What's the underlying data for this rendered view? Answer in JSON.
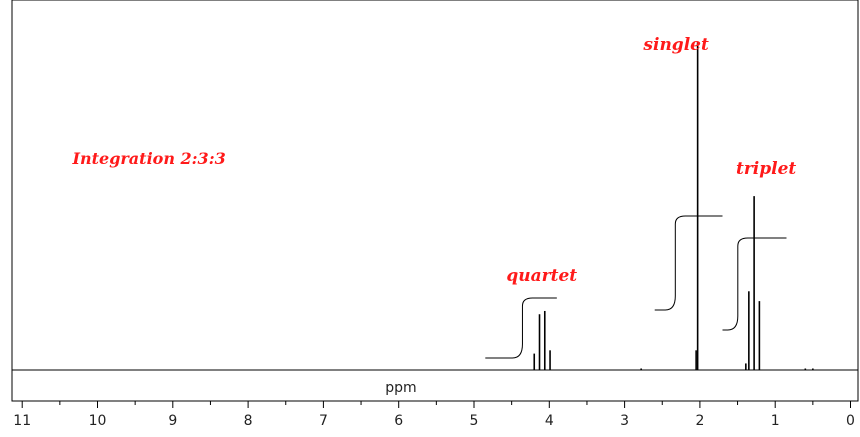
{
  "chart_data": {
    "type": "line",
    "xlabel": "ppm",
    "xlim": [
      11,
      0
    ],
    "x_reversed": true,
    "x_ticks": [
      11,
      10,
      9,
      8,
      7,
      6,
      5,
      4,
      3,
      2,
      1,
      0
    ],
    "annotations": [
      {
        "text": "Integration  2:3:3",
        "x": 10.0
      },
      {
        "text": "quartet",
        "x": 4.1
      },
      {
        "text": "singlet",
        "x": 2.05
      },
      {
        "text": "triplet",
        "x": 1.28
      }
    ],
    "peaks": [
      {
        "group": "quartet",
        "x": 4.2,
        "height": 0.05
      },
      {
        "group": "quartet",
        "x": 4.13,
        "height": 0.17
      },
      {
        "group": "quartet",
        "x": 4.06,
        "height": 0.18
      },
      {
        "group": "quartet",
        "x": 3.99,
        "height": 0.06
      },
      {
        "group": "singlet",
        "x": 2.03,
        "height": 1.0
      },
      {
        "group": "singlet",
        "x": 2.05,
        "height": 0.06
      },
      {
        "group": "triplet",
        "x": 1.35,
        "height": 0.24
      },
      {
        "group": "triplet",
        "x": 1.28,
        "height": 0.53
      },
      {
        "group": "triplet",
        "x": 1.21,
        "height": 0.21
      },
      {
        "group": "triplet",
        "x": 1.39,
        "height": 0.02
      },
      {
        "group": "baseline",
        "x": 0.6,
        "height": 0.003
      },
      {
        "group": "baseline",
        "x": 0.5,
        "height": 0.003
      },
      {
        "group": "baseline",
        "x": 2.78,
        "height": 0.003
      }
    ],
    "integrals": [
      {
        "group": "quartet",
        "from": 4.85,
        "to": 3.9,
        "relative": 2
      },
      {
        "group": "singlet",
        "from": 2.6,
        "to": 1.7,
        "relative": 3
      },
      {
        "group": "triplet",
        "from": 1.7,
        "to": 0.85,
        "relative": 3
      }
    ]
  },
  "colors": {
    "annotation": "#ff1a1a",
    "trace": "#000000",
    "frame": "#000000"
  }
}
